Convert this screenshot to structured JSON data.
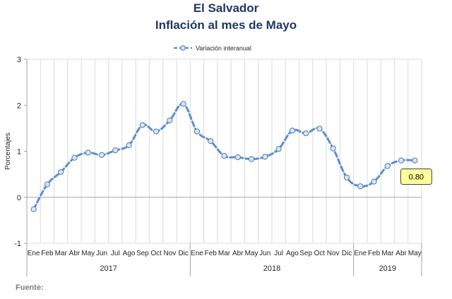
{
  "header": {
    "title_line1": "El Salvador",
    "title_line2": "Inflación al mes de Mayo"
  },
  "footer": {
    "source_label": "Fuente:"
  },
  "colors": {
    "line": "#5b8fd0",
    "marker_fill": "#dbe4f1",
    "marker_stroke": "#4a7ab8",
    "title": "#1f3864",
    "callout_fill": "#ffff99"
  },
  "chart_data": {
    "type": "line",
    "title": "",
    "xlabel": "",
    "ylabel": "Porcentajes",
    "ylim": [
      -1,
      3
    ],
    "yticks": [
      -1,
      0,
      1,
      2,
      3
    ],
    "grid": {
      "vertical": true,
      "horizontal": false
    },
    "legend": "top-center",
    "categories": [
      "Ene",
      "Feb",
      "Mar",
      "Abr",
      "May",
      "Jun",
      "Jul",
      "Ago",
      "Sep",
      "Oct",
      "Nov",
      "Dic",
      "Ene",
      "Feb",
      "Mar",
      "Abr",
      "May",
      "Jun",
      "Jul",
      "Ago",
      "Sep",
      "Oct",
      "Nov",
      "Dic",
      "Ene",
      "Feb",
      "Mar",
      "Abr",
      "May"
    ],
    "year_groups": [
      {
        "label": "2017",
        "count": 12
      },
      {
        "label": "2018",
        "count": 12
      },
      {
        "label": "2019",
        "count": 5
      }
    ],
    "series": [
      {
        "name": "Variación interanual",
        "values": [
          -0.26,
          0.28,
          0.55,
          0.86,
          0.97,
          0.92,
          1.02,
          1.13,
          1.57,
          1.43,
          1.67,
          2.03,
          1.43,
          1.22,
          0.9,
          0.87,
          0.83,
          0.88,
          1.05,
          1.45,
          1.39,
          1.49,
          1.06,
          0.43,
          0.24,
          0.34,
          0.68,
          0.8,
          0.8
        ]
      }
    ],
    "annotations": [
      {
        "index": 28,
        "text": "0.80"
      }
    ]
  }
}
